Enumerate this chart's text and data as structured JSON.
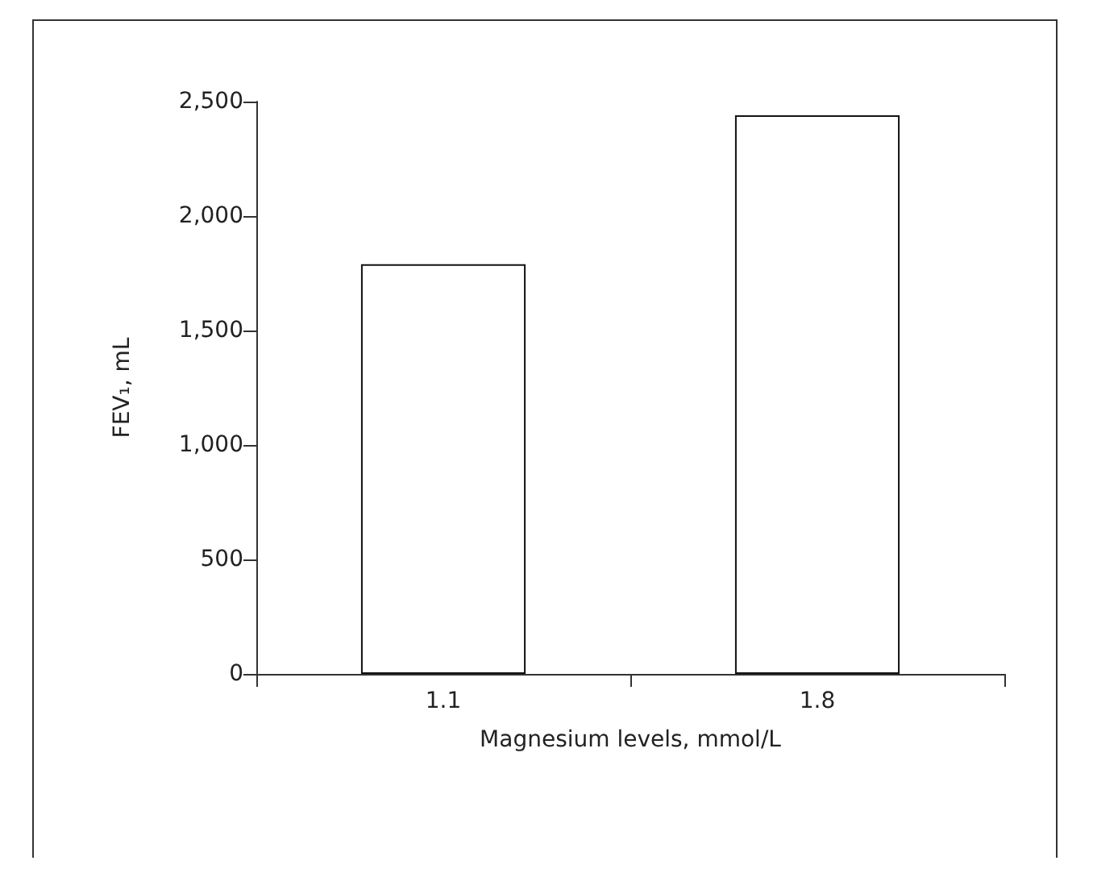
{
  "chart_data": {
    "type": "bar",
    "xlabel": "Magnesium levels, mmol/L",
    "ylabel": "FEV₁, mL",
    "categories": [
      "1.1",
      "1.8"
    ],
    "values": [
      1790,
      2440
    ],
    "color": "#ffffff",
    "ylim": [
      0,
      2500
    ],
    "yticks": [
      0,
      500,
      {
        "value": 1000,
        "label": "1,000"
      },
      {
        "value": 1500,
        "label": "1,500"
      },
      {
        "value": 2000,
        "label": "2,000"
      },
      {
        "value": 2500,
        "label": "2,500"
      }
    ],
    "grid": false
  }
}
